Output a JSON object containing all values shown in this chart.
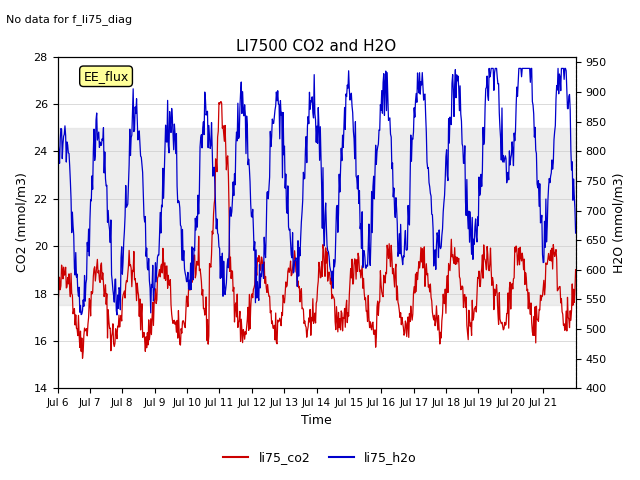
{
  "title": "LI7500 CO2 and H2O",
  "subtitle": "No data for f_li75_diag",
  "xlabel": "Time",
  "ylabel_left": "CO2 (mmol/m3)",
  "ylabel_right": "H2O (mmol/m3)",
  "ylim_left": [
    14,
    28
  ],
  "ylim_right": [
    400,
    960
  ],
  "yticks_left": [
    14,
    16,
    18,
    20,
    22,
    24,
    26,
    28
  ],
  "yticks_right": [
    400,
    450,
    500,
    550,
    600,
    650,
    700,
    750,
    800,
    850,
    900,
    950
  ],
  "xtick_labels": [
    "Jul 6",
    "Jul 7",
    "Jul 8",
    "Jul 9",
    "Jul 10",
    "Jul 11",
    "Jul 12",
    "Jul 13",
    "Jul 14",
    "Jul 15",
    "Jul 16",
    "Jul 17",
    "Jul 18",
    "Jul 19",
    "Jul 20",
    "Jul 21"
  ],
  "color_co2": "#cc0000",
  "color_h2o": "#0000cc",
  "shading_color": "#d3d3d3",
  "shading_alpha": 0.4,
  "shading_ylim": [
    17.5,
    25.0
  ],
  "annotation_box_text": "EE_flux",
  "annotation_box_color": "#ffff99",
  "background_color": "#ffffff",
  "legend_labels": [
    "li75_co2",
    "li75_h2o"
  ]
}
